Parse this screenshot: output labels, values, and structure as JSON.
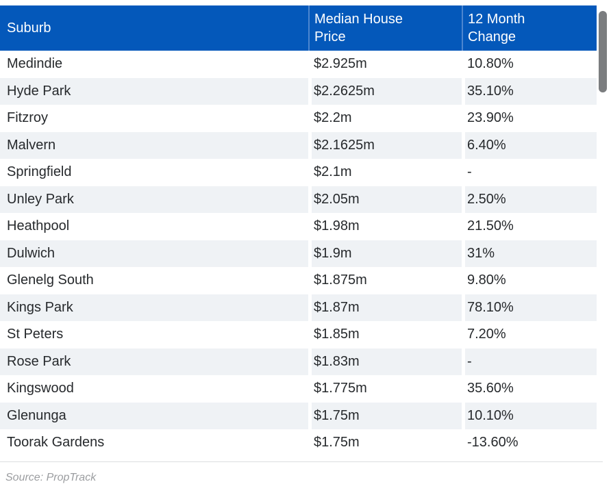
{
  "chart_data": {
    "type": "table",
    "columns": [
      "Suburb",
      "Median House Price",
      "12 Month Change"
    ],
    "rows": [
      {
        "suburb": "Medindie",
        "price": "$2.925m",
        "change": "10.80%"
      },
      {
        "suburb": "Hyde Park",
        "price": "$2.2625m",
        "change": "35.10%"
      },
      {
        "suburb": "Fitzroy",
        "price": "$2.2m",
        "change": "23.90%"
      },
      {
        "suburb": "Malvern",
        "price": "$2.1625m",
        "change": "6.40%"
      },
      {
        "suburb": "Springfield",
        "price": "$2.1m",
        "change": "-"
      },
      {
        "suburb": "Unley Park",
        "price": "$2.05m",
        "change": "2.50%"
      },
      {
        "suburb": "Heathpool",
        "price": "$1.98m",
        "change": "21.50%"
      },
      {
        "suburb": "Dulwich",
        "price": "$1.9m",
        "change": "31%"
      },
      {
        "suburb": "Glenelg South",
        "price": "$1.875m",
        "change": "9.80%"
      },
      {
        "suburb": "Kings Park",
        "price": "$1.87m",
        "change": "78.10%"
      },
      {
        "suburb": "St Peters",
        "price": "$1.85m",
        "change": "7.20%"
      },
      {
        "suburb": "Rose Park",
        "price": "$1.83m",
        "change": "-"
      },
      {
        "suburb": "Kingswood",
        "price": "$1.775m",
        "change": "35.60%"
      },
      {
        "suburb": "Glenunga",
        "price": "$1.75m",
        "change": "10.10%"
      },
      {
        "suburb": "Toorak Gardens",
        "price": "$1.75m",
        "change": "-13.60%"
      }
    ],
    "source": "Source: PropTrack",
    "layout": {
      "striped": true,
      "scrollbar_visible": true
    }
  },
  "colors": {
    "header_bg": "#0458ba",
    "header_text": "#ffffff",
    "header_divider": "#4d86cf",
    "row_stripe": "#eff2f5",
    "row_text": "#26292c",
    "source_text": "#9b9da0",
    "divider": "#dcdee0",
    "scrollbar_thumb": "#7b7d7f"
  }
}
